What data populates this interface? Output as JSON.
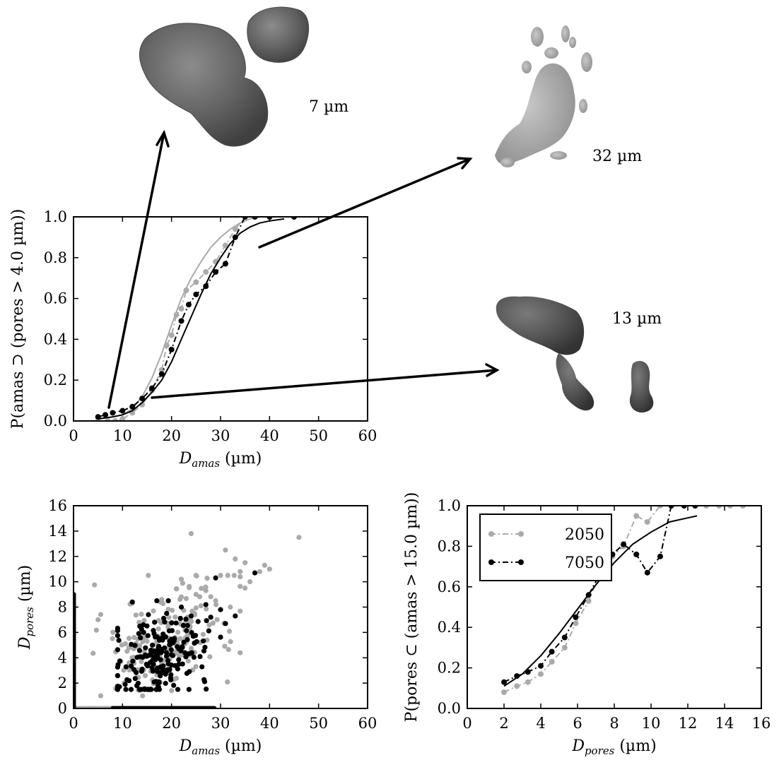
{
  "chart_data": [
    {
      "id": "top",
      "type": "line",
      "xlabel": "D_amas (µm)",
      "xlabel_parts": {
        "main": "D",
        "sub": "amas",
        "unit": "(µm)"
      },
      "ylabel": "P(amas ⊃ (pores > 4.0 µm))",
      "xlim": [
        0,
        60
      ],
      "ylim": [
        0,
        1
      ],
      "xticks": [
        "0",
        "10",
        "20",
        "30",
        "40",
        "50",
        "60"
      ],
      "yticks": [
        "0.0",
        "0.2",
        "0.4",
        "0.6",
        "0.8",
        "1.0"
      ],
      "series": [
        {
          "color": "#aaaaaa",
          "style": "dashdot-markers",
          "x": [
            5,
            7,
            8.5,
            10,
            12,
            14,
            16,
            18,
            19,
            20,
            21,
            22,
            23,
            25,
            27,
            29,
            31,
            33,
            35,
            37,
            40,
            45
          ],
          "y": [
            0.0,
            0.0,
            0.0,
            0.01,
            0.04,
            0.08,
            0.15,
            0.25,
            0.37,
            0.42,
            0.52,
            0.55,
            0.64,
            0.68,
            0.73,
            0.78,
            0.86,
            0.94,
            1.0,
            1.0,
            1.0,
            1.0
          ]
        },
        {
          "color": "#aaaaaa",
          "style": "solid",
          "x": [
            5,
            8,
            10,
            12,
            14,
            16,
            18,
            20,
            22,
            24,
            26,
            28,
            30,
            32,
            34,
            36,
            38,
            40
          ],
          "y": [
            0.01,
            0.02,
            0.03,
            0.06,
            0.12,
            0.21,
            0.33,
            0.47,
            0.6,
            0.7,
            0.78,
            0.85,
            0.9,
            0.94,
            0.97,
            0.99,
            1.0,
            1.0
          ]
        },
        {
          "color": "#000000",
          "style": "dashdot-markers",
          "x": [
            5,
            6.5,
            8,
            10,
            12,
            14,
            16,
            18,
            20,
            22,
            23.5,
            25,
            27,
            29,
            31,
            33,
            35,
            37,
            40,
            45
          ],
          "y": [
            0.02,
            0.03,
            0.04,
            0.05,
            0.07,
            0.11,
            0.16,
            0.23,
            0.35,
            0.49,
            0.57,
            0.62,
            0.66,
            0.73,
            0.77,
            0.9,
            1.0,
            1.0,
            1.0,
            1.0
          ]
        },
        {
          "color": "#000000",
          "style": "solid",
          "x": [
            5,
            8,
            10,
            12,
            14,
            16,
            18,
            20,
            22,
            24,
            26,
            28,
            30,
            32,
            34,
            36,
            38,
            40,
            43
          ],
          "y": [
            0.01,
            0.02,
            0.03,
            0.05,
            0.09,
            0.14,
            0.2,
            0.29,
            0.4,
            0.51,
            0.62,
            0.72,
            0.8,
            0.87,
            0.92,
            0.95,
            0.97,
            0.98,
            0.99
          ]
        }
      ]
    },
    {
      "id": "scatter",
      "type": "scatter",
      "xlabel": "D_amas (µm)",
      "xlabel_parts": {
        "main": "D",
        "sub": "amas",
        "unit": "(µm)"
      },
      "ylabel": "D_pores (µm)",
      "ylabel_parts": {
        "main": "D",
        "sub": "pores",
        "unit": "(µm)"
      },
      "xlim": [
        0,
        60
      ],
      "ylim": [
        0,
        16
      ],
      "xticks": [
        "0",
        "10",
        "20",
        "30",
        "40",
        "50",
        "60"
      ],
      "yticks": [
        "0",
        "2",
        "4",
        "6",
        "8",
        "10",
        "12",
        "14",
        "16"
      ],
      "series": [
        {
          "color": "#aaaaaa",
          "cluster": {
            "count": 190,
            "x_range": [
              4,
              34
            ],
            "y_range": [
              1,
              10.5
            ],
            "center": [
              19,
              5.5
            ]
          },
          "points": [
            [
              24,
              13.8
            ],
            [
              46,
              13.5
            ],
            [
              31,
              12.5
            ],
            [
              33,
              11.8
            ],
            [
              35,
              11.5
            ],
            [
              39,
              11.3
            ],
            [
              40,
              11
            ],
            [
              34,
              10.8
            ],
            [
              36,
              10
            ],
            [
              30,
              10.5
            ],
            [
              22,
              10.2
            ],
            [
              25,
              9
            ],
            [
              29,
              8.5
            ],
            [
              32,
              8
            ],
            [
              5,
              7
            ],
            [
              35,
              9.5
            ],
            [
              38,
              10.8
            ],
            [
              27,
              9.3
            ],
            [
              22,
              8.8
            ],
            [
              26,
              8.1
            ],
            [
              12,
              8.3
            ],
            [
              18,
              8.6
            ]
          ]
        },
        {
          "color": "#000000",
          "cluster": {
            "count": 200,
            "x_range": [
              9,
              30
            ],
            "y_range": [
              1.5,
              8.5
            ],
            "center": [
              18,
              4.0
            ]
          },
          "points": [
            [
              37,
              10.7
            ],
            [
              29,
              10.3
            ],
            [
              28,
              7.2
            ],
            [
              33,
              7.3
            ],
            [
              30,
              7.8
            ],
            [
              31,
              6.7
            ],
            [
              12,
              8.4
            ],
            [
              17,
              8.5
            ],
            [
              19,
              7.5
            ],
            [
              24,
              7.3
            ],
            [
              22,
              8.0
            ],
            [
              27,
              8.2
            ]
          ]
        }
      ],
      "zero_strip": {
        "x_range": [
          0,
          29
        ],
        "y": 0
      },
      "axis_strip": {
        "x": 0,
        "y_range": [
          0,
          9
        ]
      }
    },
    {
      "id": "bottom-right",
      "type": "line",
      "xlabel": "D_pores (µm)",
      "xlabel_parts": {
        "main": "D",
        "sub": "pores",
        "unit": "(µm)"
      },
      "ylabel": "P(pores ⊂ (amas > 15.0 µm))",
      "xlim": [
        0,
        16
      ],
      "ylim": [
        0,
        1
      ],
      "xticks": [
        "0",
        "2",
        "4",
        "6",
        "8",
        "10",
        "12",
        "14",
        "16"
      ],
      "yticks": [
        "0.0",
        "0.2",
        "0.4",
        "0.6",
        "0.8",
        "1.0"
      ],
      "legend": {
        "location": "upper-left",
        "entries": [
          {
            "label": "2050",
            "color": "#aaaaaa"
          },
          {
            "label": "7050",
            "color": "#000000"
          }
        ]
      },
      "series": [
        {
          "name": "2050",
          "color": "#aaaaaa",
          "style": "dashdot-markers",
          "x": [
            2,
            2.7,
            3.3,
            4,
            4.6,
            5.3,
            5.9,
            6.6,
            7.2,
            7.9,
            8.5,
            9.2,
            9.8,
            10.5,
            11.1,
            11.8,
            12.4,
            13,
            13.7,
            14.3,
            15
          ],
          "y": [
            0.08,
            0.11,
            0.13,
            0.17,
            0.23,
            0.3,
            0.42,
            0.53,
            0.66,
            0.75,
            0.8,
            0.95,
            0.92,
            1.0,
            1.0,
            1.0,
            1.0,
            1.0,
            1.0,
            1.0,
            1.0
          ]
        },
        {
          "name": "7050",
          "color": "#000000",
          "style": "dashdot-markers",
          "x": [
            2,
            2.7,
            3.3,
            4,
            4.6,
            5.3,
            5.9,
            6.6,
            7.2,
            7.9,
            8.5,
            9.2,
            9.8,
            10.5,
            11.1,
            11.8,
            12.4
          ],
          "y": [
            0.13,
            0.16,
            0.18,
            0.21,
            0.28,
            0.35,
            0.45,
            0.56,
            0.66,
            0.76,
            0.81,
            0.76,
            0.67,
            0.75,
            1.0,
            1.0,
            1.0
          ]
        },
        {
          "color": "#000000",
          "style": "solid",
          "x": [
            2,
            3,
            4,
            5,
            6,
            7,
            8,
            9,
            10,
            11,
            12,
            12.5
          ],
          "y": [
            0.11,
            0.17,
            0.26,
            0.37,
            0.49,
            0.61,
            0.72,
            0.81,
            0.87,
            0.92,
            0.94,
            0.95
          ]
        }
      ]
    }
  ],
  "annotations": {
    "size_7": "7 µm",
    "size_32": "32 µm",
    "size_13": "13 µm"
  }
}
